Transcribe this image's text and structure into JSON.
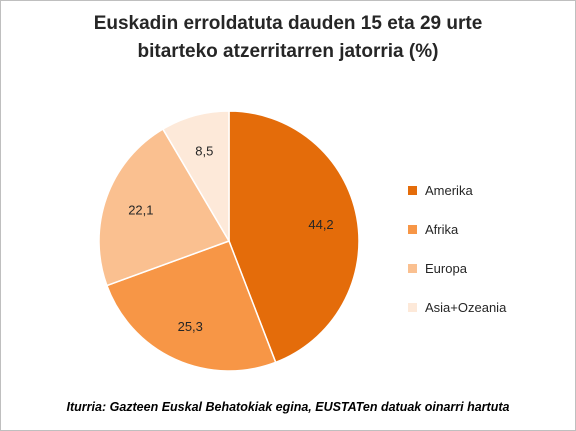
{
  "chart_data": {
    "type": "pie",
    "title_lines": [
      "Euskadin erroldatuta dauden 15 eta 29 urte",
      "bitarteko atzerritarren jatorria (%)"
    ],
    "categories": [
      "Amerika",
      "Afrika",
      "Europa",
      "Asia+Ozeania"
    ],
    "values": [
      44.2,
      25.3,
      22.1,
      8.5
    ],
    "value_labels": [
      "44,2",
      "25,3",
      "22,1",
      "8,5"
    ],
    "colors": [
      "#e46c0a",
      "#f79646",
      "#fac090",
      "#fde9d9"
    ],
    "legend_position": "right",
    "start_angle": "12 o'clock, clockwise"
  },
  "source": "Iturria: Gazteen Euskal Behatokiak egina, EUSTATen datuak oinarri hartuta"
}
